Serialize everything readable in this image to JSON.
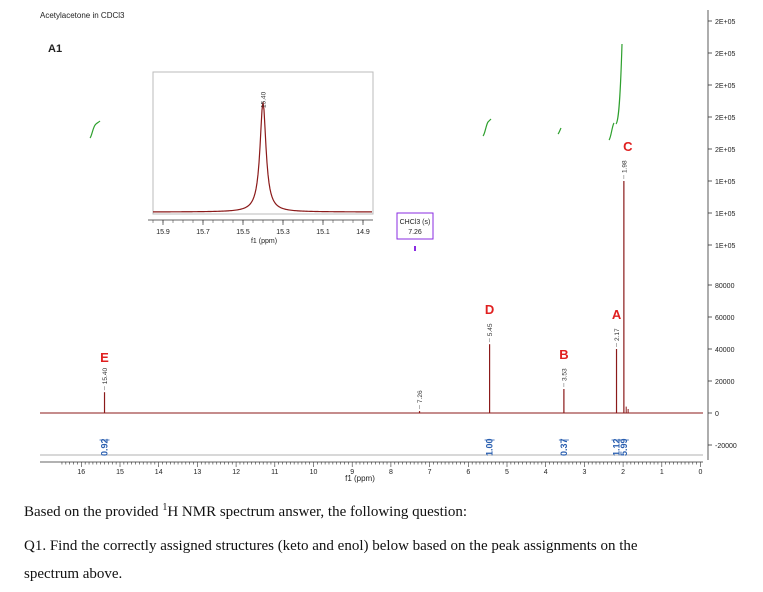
{
  "chart_data": {
    "type": "line",
    "title": "Acetylacetone in CDCl3",
    "panel_label": "A1",
    "xlabel": "f1 (ppm)",
    "xlim": [
      16.5,
      -0.3
    ],
    "x_ticks": [
      "16",
      "15",
      "14",
      "13",
      "12",
      "11",
      "10",
      "9",
      "8",
      "7",
      "6",
      "5",
      "4",
      "3",
      "2",
      "1",
      "0"
    ],
    "ylim": [
      -25000,
      255000
    ],
    "y_ticks": [
      "2E+05",
      "2E+05",
      "2E+05",
      "2E+05",
      "2E+05",
      "1E+05",
      "1E+05",
      "1E+05",
      "80000",
      "60000",
      "40000",
      "20000",
      "0",
      "-20000"
    ],
    "y_tick_values": [
      245000,
      225000,
      205000,
      185000,
      165000,
      145000,
      125000,
      105000,
      80000,
      60000,
      40000,
      20000,
      0,
      -20000
    ],
    "peaks": [
      {
        "id": "E",
        "ppm": 15.4,
        "label": "15.40",
        "height": 13000,
        "integral": "0.92"
      },
      {
        "id": "solvent",
        "ppm": 7.26,
        "label": "7.26",
        "height": 1200,
        "integral": ""
      },
      {
        "id": "D",
        "ppm": 5.45,
        "label": "5.45",
        "height": 43000,
        "integral": "1.00"
      },
      {
        "id": "B",
        "ppm": 3.53,
        "label": "3.53",
        "height": 15000,
        "integral": "0.37"
      },
      {
        "id": "A",
        "ppm": 2.17,
        "label": "2.17",
        "height": 40000,
        "integral": "1.12"
      },
      {
        "id": "C",
        "ppm": 1.98,
        "label": "1.98",
        "height": 145000,
        "integral": "5.99"
      }
    ],
    "solvent_box": {
      "line1": "CHCl3 (s)",
      "line2": "7.26",
      "ppm": 7.26
    },
    "inset": {
      "xlabel": "f1 (ppm)",
      "x_ticks": [
        "15.9",
        "15.7",
        "15.5",
        "15.3",
        "15.1",
        "14.9"
      ],
      "xlim": [
        15.95,
        14.85
      ],
      "peak_ppm": 15.4,
      "peak_label": "15.40"
    }
  },
  "question": {
    "line1_before": "Based on the provided ",
    "line1_sup": "1",
    "line1_after": "H NMR spectrum answer, the following question:",
    "q1_part1": "Q1. Find the correctly assigned structures (keto and enol) below based on the peak assignments on the",
    "q1_part2": "spectrum above."
  },
  "colors": {
    "spectrum": "#8b1a1a",
    "integral": "#2ea02e",
    "peak_letter": "#e02020",
    "integral_value": "#2a5fb0",
    "solvent_box": "#8a2be2"
  }
}
